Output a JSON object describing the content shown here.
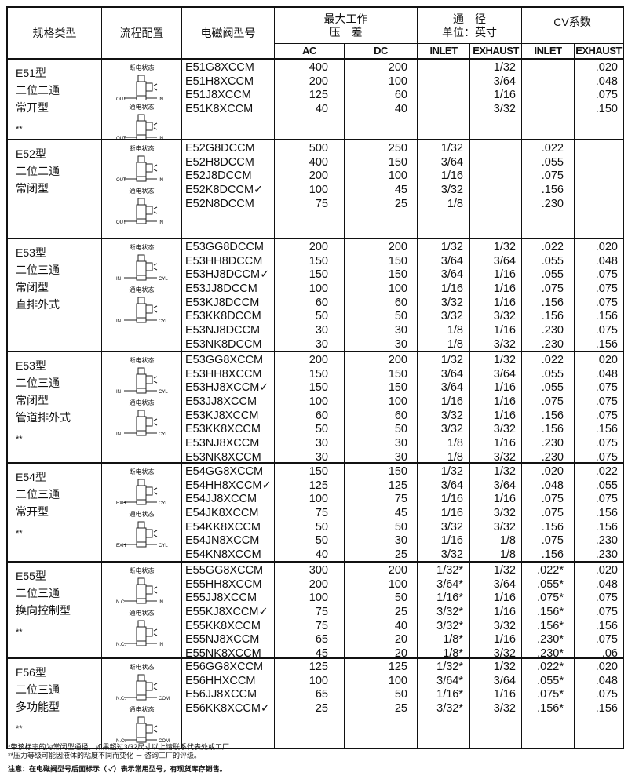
{
  "header": {
    "type": "规格类型",
    "flow": "流程配置",
    "model": "电磁阀型号",
    "pressure": "最大工作\n压　差",
    "orifice": "通　径\n单位：英寸",
    "cv": "CV系数",
    "ac": "AC",
    "dc": "DC",
    "inlet": "INLET",
    "exhaust": "EXHAUST",
    "cv_inlet": "INLET",
    "cv_exhaust": "EXHAUST"
  },
  "diagram_labels": {
    "off": "断电状态",
    "on": "通电状态"
  },
  "sections": [
    {
      "code": "E51型",
      "lines": [
        "二位二通",
        "常开型"
      ],
      "stars": "**",
      "ports": [
        "OUT",
        "IN"
      ],
      "rows": [
        [
          "E51G8XCCM",
          "400",
          "200",
          "",
          "1/32",
          "",
          ".020"
        ],
        [
          "E51H8XCCM",
          "200",
          "100",
          "",
          "3/64",
          "",
          ".048"
        ],
        [
          "E51J8XCCM",
          "125",
          "60",
          "",
          "1/16",
          "",
          ".075"
        ],
        [
          "E51K8XCCM",
          "40",
          "40",
          "",
          "3/32",
          "",
          ".150"
        ]
      ]
    },
    {
      "code": "E52型",
      "lines": [
        "二位二通",
        "常闭型"
      ],
      "stars": "",
      "ports": [
        "OUT",
        "IN"
      ],
      "rows": [
        [
          "E52G8DCCM",
          "500",
          "250",
          "1/32",
          "",
          ".022",
          ""
        ],
        [
          "E52H8DCCM",
          "400",
          "150",
          "3/64",
          "",
          ".055",
          ""
        ],
        [
          "E52J8DCCM",
          "200",
          "100",
          "1/16",
          "",
          ".075",
          ""
        ],
        [
          "E52K8DCCM✓",
          "100",
          "45",
          "3/32",
          "",
          ".156",
          ""
        ],
        [
          "E52N8DCCM",
          "75",
          "25",
          "1/8",
          "",
          ".230",
          ""
        ]
      ]
    },
    {
      "code": "E53型",
      "lines": [
        "二位三通",
        "常闭型",
        "直排外式"
      ],
      "stars": "",
      "ports": [
        "IN",
        "CYL"
      ],
      "rows": [
        [
          "E53GG8DCCM",
          "200",
          "200",
          "1/32",
          "1/32",
          ".022",
          ".020"
        ],
        [
          "E53HH8DCCM",
          "150",
          "150",
          "3/64",
          "3/64",
          ".055",
          ".048"
        ],
        [
          "E53HJ8DCCM✓",
          "150",
          "150",
          "3/64",
          "1/16",
          ".055",
          ".075"
        ],
        [
          "E53JJ8DCCM",
          "100",
          "100",
          "1/16",
          "1/16",
          ".075",
          ".075"
        ],
        [
          "E53KJ8DCCM",
          "60",
          "60",
          "3/32",
          "1/16",
          ".156",
          ".075"
        ],
        [
          "E53KK8DCCM",
          "50",
          "50",
          "3/32",
          "3/32",
          ".156",
          ".156"
        ],
        [
          "E53NJ8DCCM",
          "30",
          "30",
          "1/8",
          "1/16",
          ".230",
          ".075"
        ],
        [
          "E53NK8DCCM",
          "30",
          "30",
          "1/8",
          "3/32",
          ".230",
          ".156"
        ]
      ]
    },
    {
      "code": "E53型",
      "lines": [
        "二位三通",
        "常闭型",
        "管道排外式"
      ],
      "stars": "**",
      "ports": [
        "IN",
        "CYL"
      ],
      "rows": [
        [
          "E53GG8XCCM",
          "200",
          "200",
          "1/32",
          "1/32",
          ".022",
          "020"
        ],
        [
          "E53HH8XCCM",
          "150",
          "150",
          "3/64",
          "3/64",
          ".055",
          ".048"
        ],
        [
          "E53HJ8XCCM✓",
          "150",
          "150",
          "3/64",
          "1/16",
          ".055",
          ".075"
        ],
        [
          "E53JJ8XCCM",
          "100",
          "100",
          "1/16",
          "1/16",
          ".075",
          ".075"
        ],
        [
          "E53KJ8XCCM",
          "60",
          "60",
          "3/32",
          "1/16",
          ".156",
          ".075"
        ],
        [
          "E53KK8XCCM",
          "50",
          "50",
          "3/32",
          "3/32",
          ".156",
          ".156"
        ],
        [
          "E53NJ8XCCM",
          "30",
          "30",
          "1/8",
          "1/16",
          ".230",
          ".075"
        ],
        [
          "E53NK8XCCM",
          "30",
          "30",
          "1/8",
          "3/32",
          ".230",
          ".075"
        ]
      ]
    },
    {
      "code": "E54型",
      "lines": [
        "二位三通",
        "常开型"
      ],
      "stars": "**",
      "ports": [
        "EXH",
        "CYL"
      ],
      "rows": [
        [
          "E54GG8XCCM",
          "150",
          "150",
          "1/32",
          "1/32",
          ".020",
          ".022"
        ],
        [
          "E54HH8XCCM✓",
          "125",
          "125",
          "3/64",
          "3/64",
          ".048",
          ".055"
        ],
        [
          "E54JJ8XCCM",
          "100",
          "75",
          "1/16",
          "1/16",
          ".075",
          ".075"
        ],
        [
          "E54JK8XCCM",
          "75",
          "45",
          "1/16",
          "3/32",
          ".075",
          ".156"
        ],
        [
          "E54KK8XCCM",
          "50",
          "50",
          "3/32",
          "3/32",
          ".156",
          ".156"
        ],
        [
          "E54JN8XCCM",
          "50",
          "30",
          "1/16",
          "1/8",
          ".075",
          ".230"
        ],
        [
          "E54KN8XCCM",
          "40",
          "25",
          "3/32",
          "1/8",
          ".156",
          ".230"
        ]
      ]
    },
    {
      "code": "E55型",
      "lines": [
        "二位三通",
        "换向控制型"
      ],
      "stars": "**",
      "ports": [
        "N.C.",
        "IN"
      ],
      "rows": [
        [
          "E55GG8XCCM",
          "300",
          "200",
          "1/32*",
          "1/32",
          ".022*",
          ".020"
        ],
        [
          "E55HH8XCCM",
          "200",
          "100",
          "3/64*",
          "3/64",
          ".055*",
          ".048"
        ],
        [
          "E55JJ8XCCM",
          "100",
          "50",
          "1/16*",
          "1/16",
          ".075*",
          ".075"
        ],
        [
          "E55KJ8XCCM✓",
          "75",
          "25",
          "3/32*",
          "1/16",
          ".156*",
          ".075"
        ],
        [
          "E55KK8XCCM",
          "75",
          "40",
          "3/32*",
          "3/32",
          ".156*",
          ".156"
        ],
        [
          "E55NJ8XCCM",
          "65",
          "20",
          "1/8*",
          "1/16",
          ".230*",
          ".075"
        ],
        [
          "E55NK8XCCM",
          "45",
          "20",
          "1/8*",
          "3/32",
          ".230*",
          ".06"
        ]
      ]
    },
    {
      "code": "E56型",
      "lines": [
        "二位三通",
        "多功能型"
      ],
      "stars": "**",
      "ports": [
        "N.C.",
        "COM."
      ],
      "rows": [
        [
          "E56GG8XCCM",
          "125",
          "125",
          "1/32*",
          "1/32",
          ".022*",
          ".020"
        ],
        [
          "E56HHXCCM",
          "100",
          "100",
          "3/64*",
          "3/64",
          ".055*",
          ".048"
        ],
        [
          "E56JJ8XCCM",
          "65",
          "50",
          "1/16*",
          "1/16",
          ".075*",
          ".075"
        ],
        [
          "E56KK8XCCM✓",
          "25",
          "25",
          "3/32*",
          "3/32",
          ".156*",
          ".156"
        ]
      ]
    }
  ],
  "notes": [
    "*带该标志的为常闭型通径，如果超过3/32尺寸以上请联系代表处或工厂",
    "**压力等级可能因液体的粘度不同而变化 － 咨询工厂的评级。",
    "注意：在电磁阀型号后面标示（ ✓）表示常用型号，有现货库存销售。"
  ]
}
